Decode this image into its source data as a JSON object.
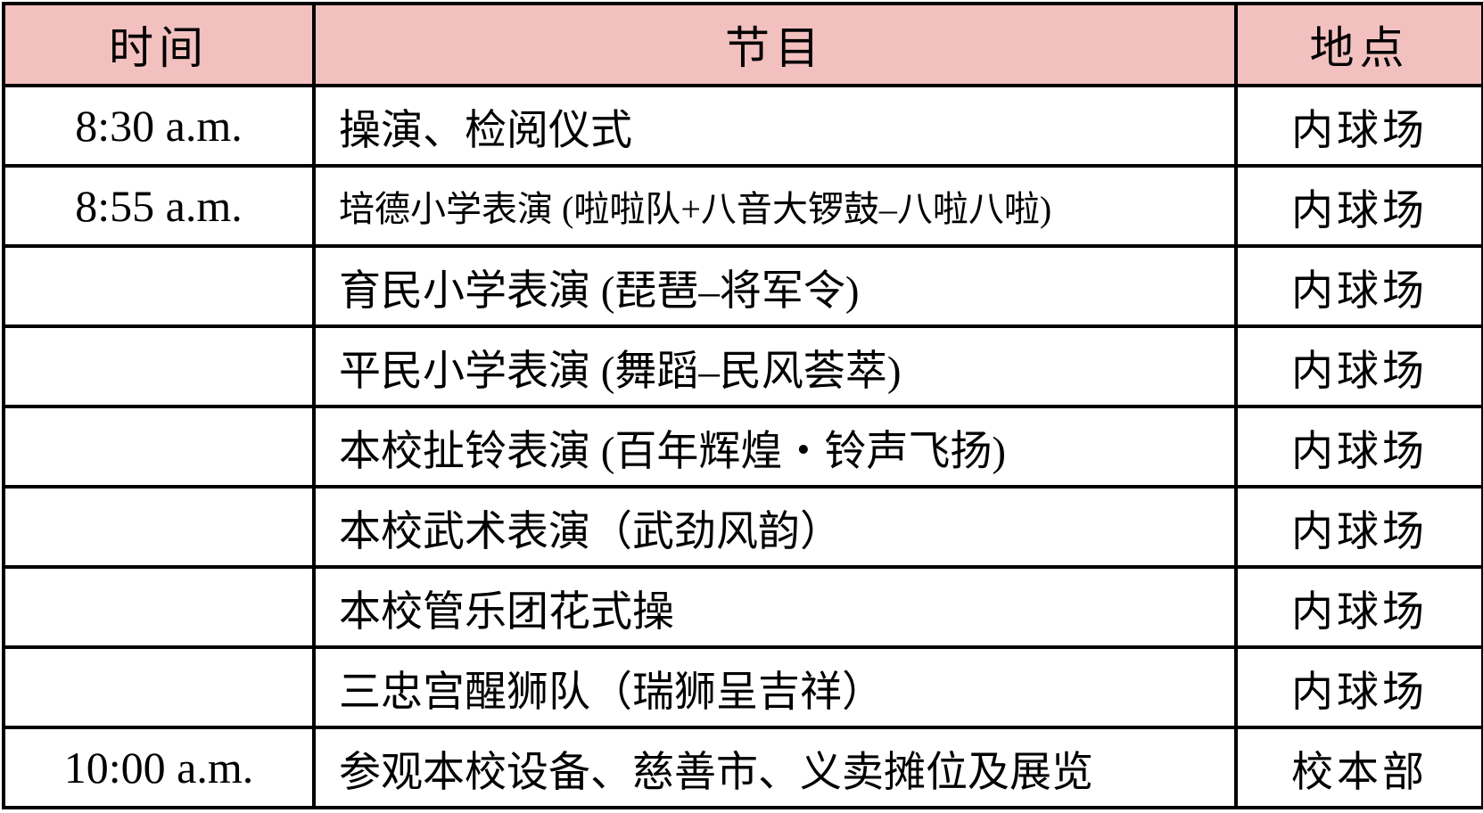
{
  "colors": {
    "header_bg": "#f2c1bf",
    "border": "#000000",
    "page_bg": "#ffffff"
  },
  "table": {
    "columns": [
      "时间",
      "节目",
      "地点"
    ],
    "rows": [
      {
        "time": "8:30 a.m.",
        "program": "操演、检阅仪式",
        "location": "内球场"
      },
      {
        "time": "8:55 a.m.",
        "program": "培德小学表演 (啦啦队+八音大锣鼓–八啦八啦)",
        "location": "内球场"
      },
      {
        "time": "",
        "program": "育民小学表演 (琵琶–将军令)",
        "location": "内球场"
      },
      {
        "time": "",
        "program": "平民小学表演 (舞蹈–民风荟萃)",
        "location": "内球场"
      },
      {
        "time": "",
        "program": "本校扯铃表演 (百年辉煌・铃声飞扬)",
        "location": "内球场"
      },
      {
        "time": "",
        "program": "本校武术表演（武劲风韵）",
        "location": "内球场"
      },
      {
        "time": "",
        "program": "本校管乐团花式操",
        "location": "内球场"
      },
      {
        "time": "",
        "program": "三忠宫醒狮队（瑞狮呈吉祥）",
        "location": "内球场"
      },
      {
        "time": "10:00 a.m.",
        "program": "参观本校设备、慈善市、义卖摊位及展览",
        "location": "校本部"
      }
    ]
  }
}
